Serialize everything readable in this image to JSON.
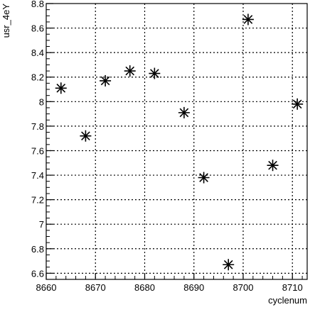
{
  "chart_data": {
    "type": "scatter",
    "title": "",
    "xlabel": "cyclenum",
    "ylabel": "usr_4eY",
    "xlim": [
      8660,
      8713
    ],
    "ylim": [
      6.55,
      8.8
    ],
    "grid": true,
    "marker": "asterisk",
    "x_ticks": [
      8660,
      8670,
      8680,
      8690,
      8700,
      8710
    ],
    "x_tick_labels": [
      "8660",
      "8670",
      "8680",
      "8690",
      "8700",
      "8710"
    ],
    "y_ticks": [
      6.6,
      6.8,
      7.0,
      7.2,
      7.4,
      7.6,
      7.8,
      8.0,
      8.2,
      8.4,
      8.6,
      8.8
    ],
    "y_tick_labels": [
      "6.6",
      "6.8",
      "7",
      "7.2",
      "7.4",
      "7.6",
      "7.8",
      "8",
      "8.2",
      "8.4",
      "8.6",
      "8.8"
    ],
    "series": [
      {
        "x": [
          8663,
          8668,
          8672,
          8677,
          8682,
          8688,
          8692,
          8697,
          8701,
          8706,
          8711
        ],
        "y": [
          8.11,
          7.72,
          8.17,
          8.25,
          8.23,
          7.91,
          7.38,
          6.67,
          8.67,
          7.48,
          7.98
        ]
      }
    ]
  }
}
